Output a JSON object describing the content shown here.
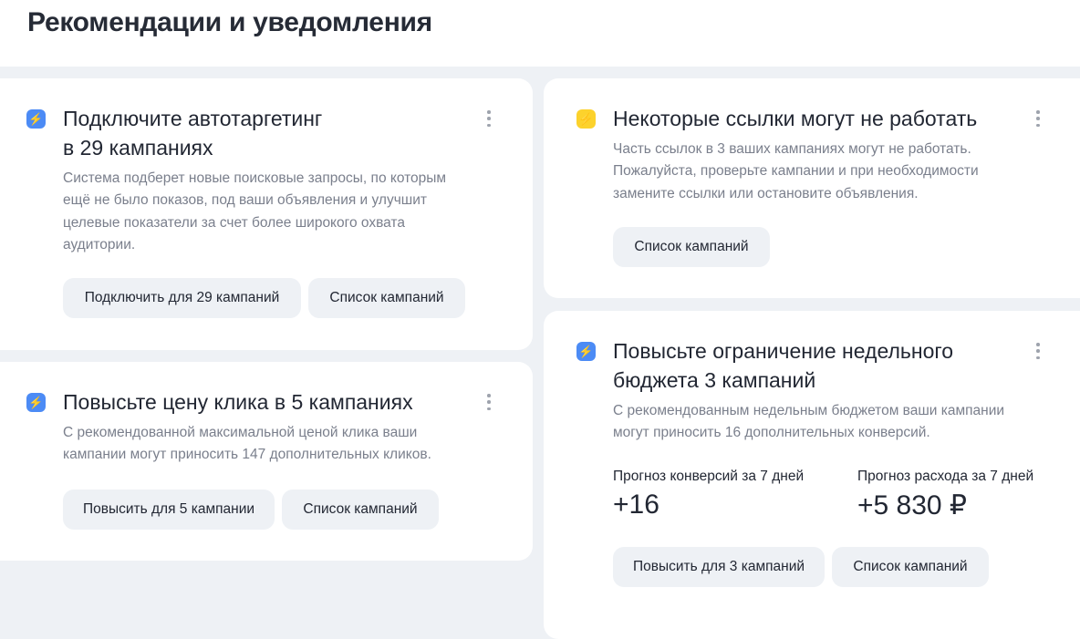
{
  "page_title": "Рекомендации и уведомления",
  "cards": [
    {
      "title": "Подключите автотаргетинг\nв 29 кампаниях",
      "title_line1": "Подключите автотаргетинг",
      "title_line2": "в 29 кампаниях",
      "desc_lines": [
        "Система подберет новые поисковые запросы, по которым",
        "ещё не было показов, под ваши объявления и улучшит",
        "целевые показатели за счет более широкого охвата",
        "аудитории."
      ],
      "primary": "Подключить для 29 кампаний",
      "secondary": "Список кампаний",
      "icon": "lightning-icon",
      "icon_color": "#4c8bf5"
    },
    {
      "title_line1": "Повысьте цену клика в 5 кампаниях",
      "desc_lines": [
        "С рекомендованной максимальной ценой клика ваши",
        "кампании могут приносить 147 дополнительных кликов."
      ],
      "primary": "Повысить для 5 кампании",
      "secondary": "Список кампаний",
      "icon": "lightning-icon",
      "icon_color": "#4c8bf5"
    },
    {
      "title_line1": "Некоторые ссылки могут не работать",
      "desc_lines": [
        "Часть ссылок в 3 ваших кампаниях могут не работать.",
        "Пожалуйста, проверьте кампании и при необходимости",
        "замените ссылки или остановите объявления."
      ],
      "secondary": "Список кампаний",
      "icon": "lightning-icon",
      "icon_color": "#fcd22c"
    },
    {
      "title_line1": "Повысьте ограничение недельного",
      "title_line2": "бюджета 3 кампаний",
      "desc_lines": [
        "С рекомендованным недельным бюджетом ваши кампании",
        "могут приносить 16 дополнительных конверсий."
      ],
      "stats": [
        {
          "label": "Прогноз конверсий за 7 дней",
          "value": "+16"
        },
        {
          "label": "Прогноз расхода за 7 дней",
          "value": "+5 830 ₽"
        }
      ],
      "primary": "Повысить для 3 кампаний",
      "secondary": "Список кампаний",
      "icon": "lightning-icon",
      "icon_color": "#4c8bf5"
    }
  ]
}
